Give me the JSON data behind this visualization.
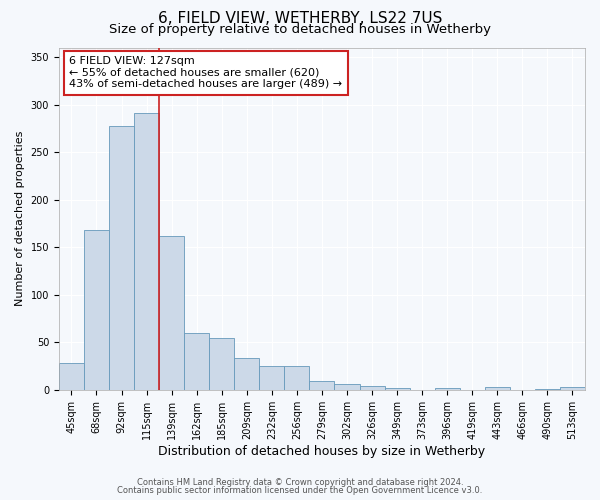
{
  "title": "6, FIELD VIEW, WETHERBY, LS22 7US",
  "subtitle": "Size of property relative to detached houses in Wetherby",
  "xlabel": "Distribution of detached houses by size in Wetherby",
  "ylabel": "Number of detached properties",
  "categories": [
    "45sqm",
    "68sqm",
    "92sqm",
    "115sqm",
    "139sqm",
    "162sqm",
    "185sqm",
    "209sqm",
    "232sqm",
    "256sqm",
    "279sqm",
    "302sqm",
    "326sqm",
    "349sqm",
    "373sqm",
    "396sqm",
    "419sqm",
    "443sqm",
    "466sqm",
    "490sqm",
    "513sqm"
  ],
  "values": [
    28,
    168,
    277,
    291,
    162,
    60,
    54,
    34,
    25,
    25,
    9,
    6,
    4,
    2,
    0,
    2,
    0,
    3,
    0,
    1,
    3
  ],
  "bar_color": "#ccd9e8",
  "bar_edge_color": "#6699bb",
  "red_line_x": 3.5,
  "annotation_text": "6 FIELD VIEW: 127sqm\n← 55% of detached houses are smaller (620)\n43% of semi-detached houses are larger (489) →",
  "annotation_box_facecolor": "#ffffff",
  "annotation_box_edgecolor": "#cc2222",
  "ylim_max": 360,
  "yticks": [
    0,
    50,
    100,
    150,
    200,
    250,
    300,
    350
  ],
  "footer_line1": "Contains HM Land Registry data © Crown copyright and database right 2024.",
  "footer_line2": "Contains public sector information licensed under the Open Government Licence v3.0.",
  "fig_background": "#f5f8fc",
  "axes_background": "#f5f8fc",
  "grid_color": "#ffffff",
  "title_fontsize": 11,
  "subtitle_fontsize": 9.5,
  "xlabel_fontsize": 9,
  "ylabel_fontsize": 8,
  "tick_fontsize": 7,
  "annot_fontsize": 8,
  "footer_fontsize": 6
}
